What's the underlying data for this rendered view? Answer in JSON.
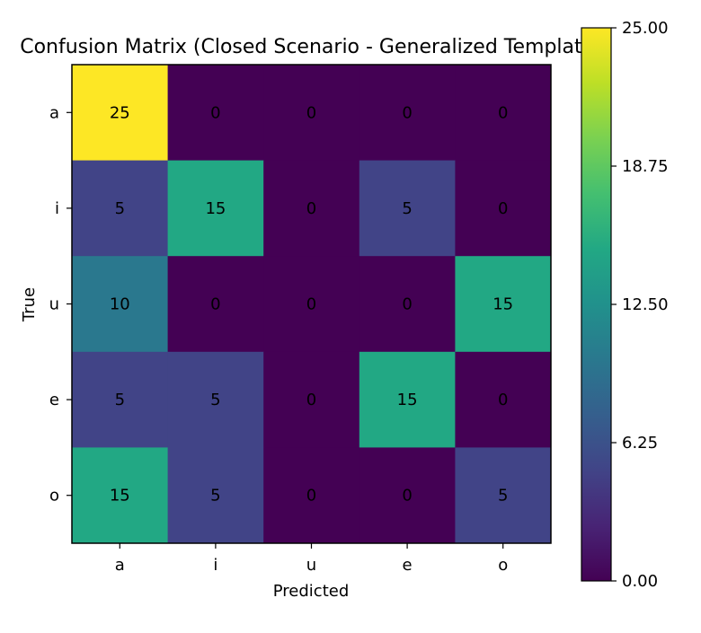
{
  "chart_data": {
    "type": "heatmap",
    "title": "Confusion Matrix (Closed Scenario - Generalized Template)",
    "xlabel": "Predicted",
    "ylabel": "True",
    "x_categories": [
      "a",
      "i",
      "u",
      "e",
      "o"
    ],
    "y_categories": [
      "a",
      "i",
      "u",
      "e",
      "o"
    ],
    "values": [
      [
        25,
        0,
        0,
        0,
        0
      ],
      [
        5,
        15,
        0,
        5,
        0
      ],
      [
        10,
        0,
        0,
        0,
        15
      ],
      [
        5,
        5,
        0,
        15,
        0
      ],
      [
        15,
        5,
        0,
        0,
        5
      ]
    ],
    "colorbar": {
      "range": [
        0,
        25
      ],
      "ticks": [
        "0.00",
        "6.25",
        "12.50",
        "18.75",
        "25.00"
      ],
      "colormap": "viridis"
    },
    "grid": false
  }
}
